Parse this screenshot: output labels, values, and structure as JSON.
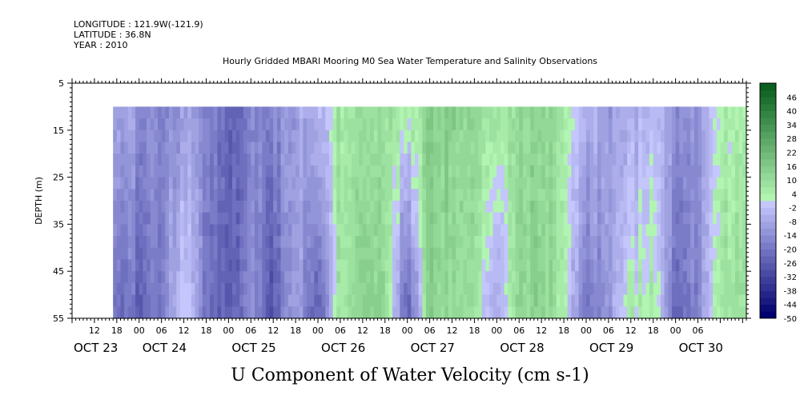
{
  "header": {
    "longitude": "LONGITUDE : 121.9W(-121.9)",
    "latitude": "LATITUDE : 36.8N",
    "year": "YEAR : 2010",
    "title": "Hourly Gridded MBARI Mooring M0 Sea Water Temperature and Salinity Observations"
  },
  "chart_data": {
    "type": "heatmap",
    "title": "Hourly Gridded MBARI Mooring M0 Sea Water Temperature and Salinity Observations",
    "variable_label": "U Component of Water Velocity (cm s-1)",
    "ylabel": "DEPTH (m)",
    "xlabel": "",
    "y_axis": {
      "range": [
        5,
        55
      ],
      "inverted": true,
      "ticks": [
        5,
        15,
        25,
        35,
        45,
        55
      ],
      "data_depth_range": [
        10,
        55
      ]
    },
    "x_axis": {
      "start": "2010-10-23 06:00",
      "end": "2010-10-30 19:00",
      "data_start": "2010-10-23 17:00",
      "data_end": "2010-10-30 19:00",
      "hour_ticks": [
        "12",
        "18",
        "00",
        "06",
        "12",
        "18",
        "00",
        "06",
        "12",
        "18",
        "00",
        "06",
        "12",
        "18",
        "00",
        "06",
        "12",
        "18",
        "00",
        "06",
        "12",
        "18",
        "00",
        "06",
        "12",
        "18",
        "00",
        "06"
      ],
      "date_labels": [
        "OCT 23",
        "OCT 24",
        "OCT 25",
        "OCT 26",
        "OCT 27",
        "OCT 28",
        "OCT 29",
        "OCT 30"
      ]
    },
    "colorbar": {
      "levels": [
        "-50",
        "-44",
        "-38",
        "-32",
        "-26",
        "-20",
        "-14",
        "-8",
        "-2",
        "4",
        "10",
        "16",
        "22",
        "28",
        "34",
        "40",
        "46"
      ],
      "range": [
        -50,
        52
      ],
      "step": 3,
      "label_step": 6
    },
    "u_velocity_profile": {
      "description_units": "cm s-1",
      "times": [
        "10-23 18:00",
        "10-24 00:00",
        "10-24 06:00",
        "10-24 12:00",
        "10-24 18:00",
        "10-25 00:00",
        "10-25 06:00",
        "10-25 12:00",
        "10-25 18:00",
        "10-26 00:00",
        "10-26 06:00",
        "10-26 12:00",
        "10-26 18:00",
        "10-27 00:00",
        "10-27 06:00",
        "10-27 12:00",
        "10-27 18:00",
        "10-28 00:00",
        "10-28 06:00",
        "10-28 12:00",
        "10-28 18:00",
        "10-29 00:00",
        "10-29 06:00",
        "10-29 12:00",
        "10-29 18:00",
        "10-30 00:00",
        "10-30 06:00",
        "10-30 12:00"
      ],
      "surface_u": [
        -8,
        -12,
        -16,
        -10,
        -14,
        -24,
        -18,
        -16,
        -10,
        -4,
        8,
        12,
        10,
        4,
        14,
        16,
        12,
        6,
        10,
        14,
        8,
        -4,
        -10,
        -8,
        -2,
        -12,
        -14,
        4
      ],
      "bottom_u": [
        -20,
        -24,
        -18,
        4,
        -20,
        -26,
        -14,
        -28,
        -8,
        -26,
        8,
        16,
        14,
        -28,
        14,
        12,
        10,
        -10,
        12,
        14,
        6,
        -20,
        -12,
        4,
        6,
        -22,
        -16,
        8
      ]
    }
  }
}
